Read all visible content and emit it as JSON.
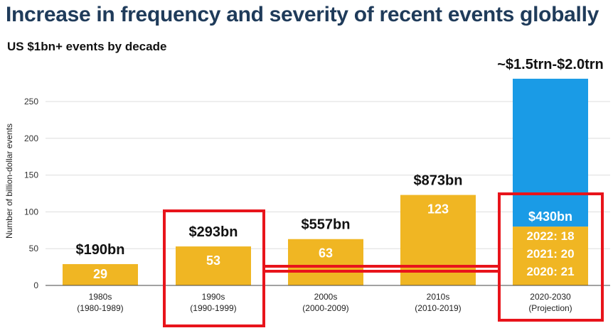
{
  "page": {
    "title": "Increase in frequency and severity of recent events globally",
    "subtitle": "US $1bn+ events by decade"
  },
  "chart_data": {
    "type": "bar",
    "stacked": true,
    "ylabel": "Number of billion-dollar events",
    "ylim": [
      0,
      280
    ],
    "yticks": [
      0,
      50,
      100,
      150,
      200,
      250
    ],
    "grid": true,
    "categories": [
      {
        "label": "1980s",
        "sublabel": "(1980-1989)"
      },
      {
        "label": "1990s",
        "sublabel": "(1990-1999)"
      },
      {
        "label": "2000s",
        "sublabel": "(2000-2009)"
      },
      {
        "label": "2010s",
        "sublabel": "(2010-2019)"
      },
      {
        "label": "2020-2030",
        "sublabel": "(Projection)"
      }
    ],
    "series": [
      {
        "values": [
          29,
          53,
          63,
          123,
          80
        ],
        "color": "#f0b623"
      },
      {
        "values": [
          0,
          0,
          0,
          0,
          201
        ],
        "color": "#1a9be6"
      }
    ],
    "bar_value_labels": [
      "29",
      "53",
      "63",
      "123",
      null
    ],
    "cost_labels": [
      "$190bn",
      "$293bn",
      "$557bn",
      "$873bn",
      "~$1.5trn-$2.0trn"
    ],
    "projection_segment_label": "$430bn",
    "projection_year_labels": [
      "2022: 18",
      "2021: 20",
      "2020: 21"
    ],
    "highlight_color": "#e8141b",
    "highlighted_categories": [
      1,
      4
    ]
  }
}
